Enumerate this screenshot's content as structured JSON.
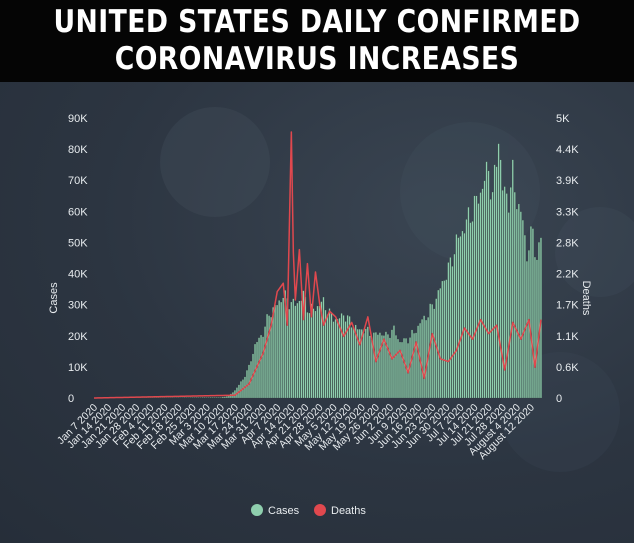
{
  "banner": {
    "line1": "UNITED STATES DAILY CONFIRMED",
    "line2": "CORONAVIRUS INCREASES"
  },
  "colors": {
    "cases": "#8fcfae",
    "deaths": "#e0484e",
    "background": "#2c3541"
  },
  "chart_data": {
    "type": "bar",
    "title": "UNITED STATES DAILY CONFIRMED CORONAVIRUS INCREASES",
    "xlabel": "",
    "ylabel": "Cases",
    "y2label": "Deaths",
    "ylim": [
      0,
      90000
    ],
    "y2lim": [
      0,
      5000
    ],
    "yticks": [
      "0",
      "10K",
      "20K",
      "30K",
      "40K",
      "50K",
      "60K",
      "70K",
      "80K",
      "90K"
    ],
    "y2ticks": [
      "0",
      "0.6K",
      "1.1K",
      "1.7K",
      "2.2K",
      "2.8K",
      "3.3K",
      "3.9K",
      "4.4K",
      "5K"
    ],
    "start_date": "Jan 7 2020",
    "x_tick_labels": [
      "Jan 7 2020",
      "Jan 14 2020",
      "Jan 21 2020",
      "Jan 28 2020",
      "Feb 4 2020",
      "Feb 11 2020",
      "Feb 18 2020",
      "Feb 25 2020",
      "Mar 3 2020",
      "Mar 10 2020",
      "Mar 17 2020",
      "Mar 24 2020",
      "Mar 31 2020",
      "Apr 7 2020",
      "Apr 14 2020",
      "Apr 21 2020",
      "Apr 28 2020",
      "May 5 2020",
      "May 12 2020",
      "May 19 2020",
      "May 26 2020",
      "Jun 2 2020",
      "Jun 9 2020",
      "Jun 16 2020",
      "Jun 23 2020",
      "Jun 30 2020",
      "Jul 7 2020",
      "Jul 14 2020",
      "Jul 21 2020",
      "Jul 28 2020",
      "August 4 2020",
      "August 12 2020"
    ],
    "legend": [
      "Cases",
      "Deaths"
    ],
    "legend_position": "bottom-center",
    "series": [
      {
        "name": "Cases",
        "type": "bar",
        "axis": "left",
        "anchor_days": [
          0,
          63,
          67,
          70,
          74,
          77,
          80,
          84,
          87,
          91,
          94,
          97,
          100,
          104,
          107,
          110,
          114,
          117,
          121,
          124,
          128,
          131,
          135,
          138,
          142,
          145,
          149,
          152,
          156,
          159,
          163,
          166,
          170,
          173,
          177,
          180,
          184,
          187,
          190,
          193,
          196,
          198,
          201,
          203,
          206,
          208,
          211,
          213,
          215,
          218,
          220,
          222
        ],
        "anchor_values": [
          0,
          200,
          700,
          2500,
          6000,
          10000,
          17000,
          21000,
          27000,
          30000,
          33000,
          31000,
          30000,
          33000,
          28000,
          29000,
          31000,
          27000,
          25000,
          27000,
          24000,
          22000,
          22000,
          20000,
          21000,
          20000,
          22000,
          18000,
          19000,
          21000,
          25000,
          27000,
          32000,
          37000,
          43000,
          50000,
          55000,
          59000,
          63000,
          68000,
          74000,
          64000,
          84000,
          67000,
          64000,
          71000,
          61000,
          57000,
          46000,
          54000,
          44000,
          52000
        ]
      },
      {
        "name": "Deaths",
        "type": "line",
        "axis": "right",
        "anchor_days": [
          0,
          70,
          77,
          84,
          88,
          91,
          94,
          96,
          98,
          99,
          100,
          102,
          104,
          106,
          108,
          110,
          112,
          114,
          117,
          120,
          124,
          128,
          132,
          136,
          140,
          144,
          148,
          152,
          156,
          160,
          164,
          168,
          172,
          176,
          180,
          184,
          188,
          192,
          196,
          200,
          204,
          208,
          212,
          216,
          219,
          222
        ],
        "anchor_values": [
          0,
          50,
          250,
          800,
          1300,
          1900,
          2050,
          1300,
          4750,
          2600,
          1750,
          2650,
          1400,
          2400,
          1450,
          2250,
          1700,
          1300,
          1550,
          1450,
          1100,
          1350,
          950,
          1450,
          650,
          1050,
          700,
          850,
          450,
          1000,
          350,
          1150,
          700,
          650,
          850,
          1250,
          1050,
          1400,
          1150,
          1300,
          500,
          1350,
          1050,
          1400,
          550,
          1400
        ]
      }
    ]
  }
}
